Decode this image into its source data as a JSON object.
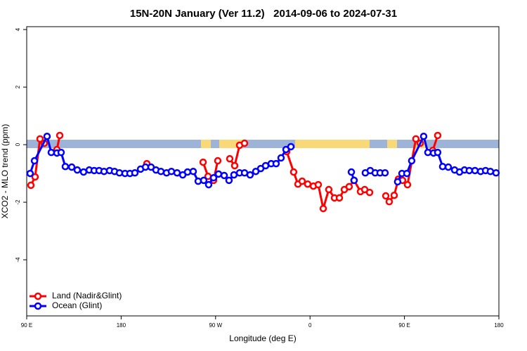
{
  "chart_data": {
    "type": "line",
    "title": "15N-20N January (Ver 11.2)   2014-09-06 to 2024-07-31",
    "x_label": "Longitude (deg E)",
    "y_label": "XCO2 - MLO trend (ppm)",
    "xlim": [
      90,
      540
    ],
    "ylim": [
      -5.95,
      4.1
    ],
    "xticks": [
      {
        "value": 90,
        "label": "90 E"
      },
      180,
      {
        "value": 270,
        "label": "90 W"
      },
      {
        "value": 360,
        "label": "0"
      },
      {
        "value": 450,
        "label": "90 E"
      },
      {
        "value": 540,
        "label": "180"
      }
    ],
    "yticks": [
      -4,
      -2,
      0,
      2,
      4
    ],
    "legend": "bottomleft",
    "series": [
      {
        "name": "Land (Nadir&Glint)",
        "color": "#ff0000",
        "x": [
          94.0,
          98.0,
          102.7,
          106.7,
          null,
          118.8,
          121.5,
          null,
          204.5,
          null,
          258.1,
          262.8,
          268.1,
          272.1,
          null,
          283.5,
          288.2,
          292.9,
          297.6,
          null,
          337.8,
          344.4,
          348.5,
          352.5,
          357.8,
          363.2,
          367.9,
          372.6,
          377.9,
          383.3,
          388.0,
          392.7,
          397.3,
          402.0,
          408.1,
          412.1,
          416.8,
          null,
          432.2,
          435.5,
          440.2,
          444.2,
          448.2,
          452.9,
          460.9,
          465.0,
          null,
          477.0,
          481.7
        ],
        "values": [
          -1.41,
          -1.12,
          0.2,
          0.05,
          null,
          -0.17,
          0.32,
          null,
          -0.66,
          null,
          -0.61,
          -1.1,
          -1.24,
          -0.56,
          null,
          -0.49,
          -0.73,
          -0.02,
          0.05,
          null,
          -0.24,
          -0.95,
          -1.37,
          -1.27,
          -1.37,
          -1.44,
          -1.39,
          -2.22,
          -1.56,
          -1.85,
          -1.85,
          -1.56,
          -1.46,
          -1.24,
          -1.63,
          -1.56,
          -1.66,
          null,
          -1.78,
          -1.98,
          -1.76,
          -1.2,
          -1.24,
          -1.39,
          0.2,
          0.05,
          null,
          -0.2,
          0.32
        ]
      },
      {
        "name": "Ocean (Glint)",
        "color": "#0000ff",
        "x": [
          93.3,
          97.4,
          109.4,
          113.4,
          118.8,
          122.8,
          126.8,
          132.9,
          138.2,
          144.2,
          149.6,
          154.3,
          159.0,
          163.7,
          169.0,
          173.7,
          178.4,
          183.7,
          188.4,
          193.1,
          198.5,
          203.2,
          208.5,
          213.2,
          217.9,
          223.3,
          227.9,
          233.3,
          238.7,
          243.3,
          248.7,
          253.4,
          258.7,
          263.4,
          268.1,
          272.8,
          278.2,
          282.8,
          287.5,
          292.9,
          297.6,
          302.9,
          308.3,
          313.0,
          317.7,
          323.0,
          327.7,
          332.4,
          337.1,
          341.8,
          null,
          399.4,
          402.0,
          null,
          412.7,
          417.4,
          422.1,
          426.8,
          431.5,
          null,
          443.5,
          447.6,
          452.3,
          456.9,
          468.3,
          472.3,
          477.7,
          481.7,
          486.4,
          491.8,
          497.8,
          502.5,
          507.2,
          511.8,
          517.2,
          522.6,
          527.3,
          531.9,
          537.3
        ],
        "values": [
          -1.0,
          -0.56,
          0.29,
          -0.27,
          -0.29,
          -0.27,
          -0.76,
          -0.78,
          -0.88,
          -0.95,
          -0.88,
          -0.9,
          -0.9,
          -0.93,
          -0.9,
          -0.93,
          -0.98,
          -1.0,
          -1.0,
          -0.98,
          -0.85,
          -0.78,
          -0.78,
          -0.88,
          -0.93,
          -0.98,
          -0.93,
          -0.98,
          -1.05,
          -0.95,
          -0.93,
          -1.27,
          -1.24,
          -1.39,
          -1.15,
          -1.02,
          -1.07,
          -1.24,
          -1.05,
          -0.98,
          -0.98,
          -1.05,
          -0.93,
          -0.83,
          -0.73,
          -0.66,
          -0.66,
          -0.46,
          -0.17,
          -0.07,
          null,
          -0.95,
          -1.24,
          null,
          -0.98,
          -0.9,
          -0.98,
          -0.98,
          -0.98,
          null,
          -1.29,
          -1.0,
          -1.0,
          -0.56,
          0.29,
          -0.27,
          -0.29,
          -0.27,
          -0.76,
          -0.78,
          -0.88,
          -0.95,
          -0.88,
          -0.9,
          -0.9,
          -0.93,
          -0.9,
          -0.93,
          -0.98
        ]
      }
    ]
  }
}
